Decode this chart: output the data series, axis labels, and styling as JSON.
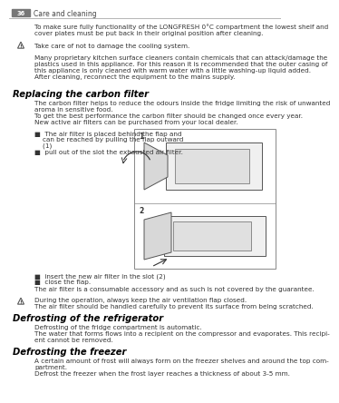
{
  "page_num": "36",
  "header_text": "Care and cleaning",
  "bg_color": "#ffffff",
  "header_bar_color": "#777777",
  "header_text_color": "#444444",
  "line_color": "#aaaaaa",
  "body_text_color": "#333333",
  "title_color": "#000000",
  "font_size_body": 5.2,
  "font_size_title": 7.2,
  "font_size_header": 5.5,
  "para0": "To make sure fully functionality of the LONGFRESH 0°C compartment the lowest shelf and\ncover plates must be put back in their original position after cleaning.",
  "warn1": "Take care of not to damage the cooling system.",
  "para2": "Many proprietary kitchen surface cleaners contain chemicals that can attack/damage the\nplastics used in this appliance. For this reason it is recommended that the outer casing of\nthis appliance is only cleaned with warm water with a little washing-up liquid added.\nAfter cleaning, reconnect the equipment to the mains supply.",
  "sec1_title": "Replacing the carbon filter",
  "sec1_body": "The carbon filter helps to reduce the odours inside the fridge limiting the risk of unwanted\naroma in sensitive food.\nTo get the best performance the carbon filter should be changed once every year.\nNew active air filters can be purchased from your local dealer.",
  "sec1_bul1a": "■  The air filter is placed behind the flap and",
  "sec1_bul1b": "    can be reached by pulling the flap outward",
  "sec1_bul1c": "    (1)",
  "sec1_bul2": "■  pull out of the slot the exhausted air filter.",
  "sec1_bul3": "■  insert the new air filter in the slot (2)",
  "sec1_bul4": "■  close the flap.",
  "sec1_note": "The air filter is a consumable accessory and as such is not covered by the guarantee.",
  "warn2": "During the operation, always keep the air ventilation flap closed.\nThe air filter should be handled carefully to prevent its surface from being scratched.",
  "sec2_title": "Defrosting of the refrigerator",
  "sec2_body": "Defrosting of the fridge compartment is automatic.\nThe water that forms flows into a recipient on the compressor and evaporates. This recipi-\nent cannot be removed.",
  "sec3_title": "Defrosting the freezer",
  "sec3_body": "A certain amount of frost will always form on the freezer shelves and around the top com-\npartment.\nDefrost the freezer when the frost layer reaches a thickness of about 3-5 mm."
}
